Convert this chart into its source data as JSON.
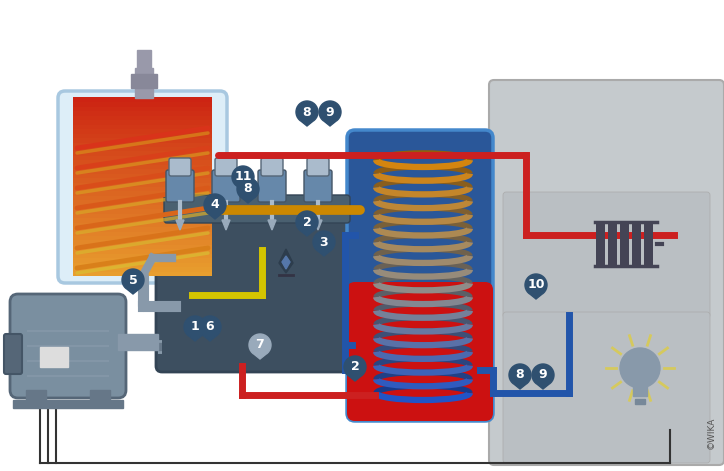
{
  "bg": "#ffffff",
  "pipe_red": "#cc2020",
  "pipe_blue": "#2255aa",
  "pipe_orange": "#cc8800",
  "pipe_yellow": "#d4c400",
  "pipe_gray": "#8899aa",
  "pipe_black": "#333333",
  "boiler_border": "#a8c8e0",
  "boiler_bg": "#ddeef8",
  "boiler_top_color": "#e8a030",
  "boiler_bot_color": "#cc1111",
  "tank_blue": "#2a5799",
  "tank_red": "#cc1111",
  "tank_border": "#4488cc",
  "engine_body": "#3d4f60",
  "engine_top": "#4a6070",
  "engine_light": "#7a9ab0",
  "motor_body": "#7a8fa0",
  "motor_dark": "#556677",
  "building_bg": "#c5cacd",
  "building_inner": "#babfc3",
  "pin_dark": "#2f5070",
  "pin_light": "#4a7090",
  "radiator_color": "#444455",
  "bulb_color": "#8899aa",
  "glow_color": "#ddcc44",
  "coil_orange": "#d4850a",
  "coil_blue": "#2255aa",
  "coil_mid": "#888888"
}
